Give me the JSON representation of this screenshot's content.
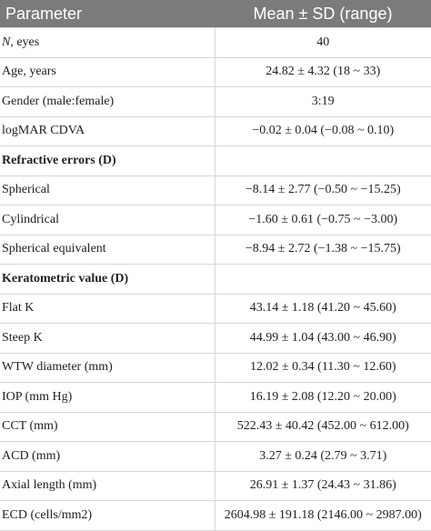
{
  "header": {
    "col1": "Parameter",
    "col2": "Mean ± SD (range)"
  },
  "rows": [
    {
      "label_italic": "N",
      "label": ", eyes",
      "value": "40"
    },
    {
      "label": "Age, years",
      "value": "24.82 ± 4.32 (18 ~ 33)"
    },
    {
      "label": "Gender (male:female)",
      "value": "3:19"
    },
    {
      "label": "logMAR CDVA",
      "value": "−0.02 ± 0.04 (−0.08 ~ 0.10)"
    },
    {
      "label": "Refractive errors (D)",
      "value": "",
      "section": true
    },
    {
      "label": "Spherical",
      "value": "−8.14 ± 2.77 (−0.50 ~ −15.25)"
    },
    {
      "label": "Cylindrical",
      "value": "−1.60 ± 0.61 (−0.75 ~ −3.00)"
    },
    {
      "label": "Spherical equivalent",
      "value": "−8.94 ± 2.72 (−1.38 ~ −15.75)"
    },
    {
      "label": "Keratometric value (D)",
      "value": "",
      "section": true
    },
    {
      "label": "Flat K",
      "value": "43.14 ± 1.18 (41.20 ~ 45.60)"
    },
    {
      "label": "Steep K",
      "value": "44.99 ± 1.04 (43.00 ~ 46.90)"
    },
    {
      "label": "WTW diameter (mm)",
      "value": "12.02 ± 0.34 (11.30 ~ 12.60)"
    },
    {
      "label": "IOP (mm Hg)",
      "value": "16.19 ± 2.08 (12.20 ~ 20.00)"
    },
    {
      "label": "CCT (mm)",
      "value": "522.43 ± 40.42 (452.00 ~ 612.00)"
    },
    {
      "label": "ACD (mm)",
      "value": "3.27 ± 0.24 (2.79 ~ 3.71)"
    },
    {
      "label": "Axial length (mm)",
      "value": "26.91 ± 1.37 (24.43 ~ 31.86)"
    },
    {
      "label": "ECD (cells/mm2)",
      "value": "2604.98 ± 191.18 (2146.00 ~ 2987.00)"
    }
  ]
}
